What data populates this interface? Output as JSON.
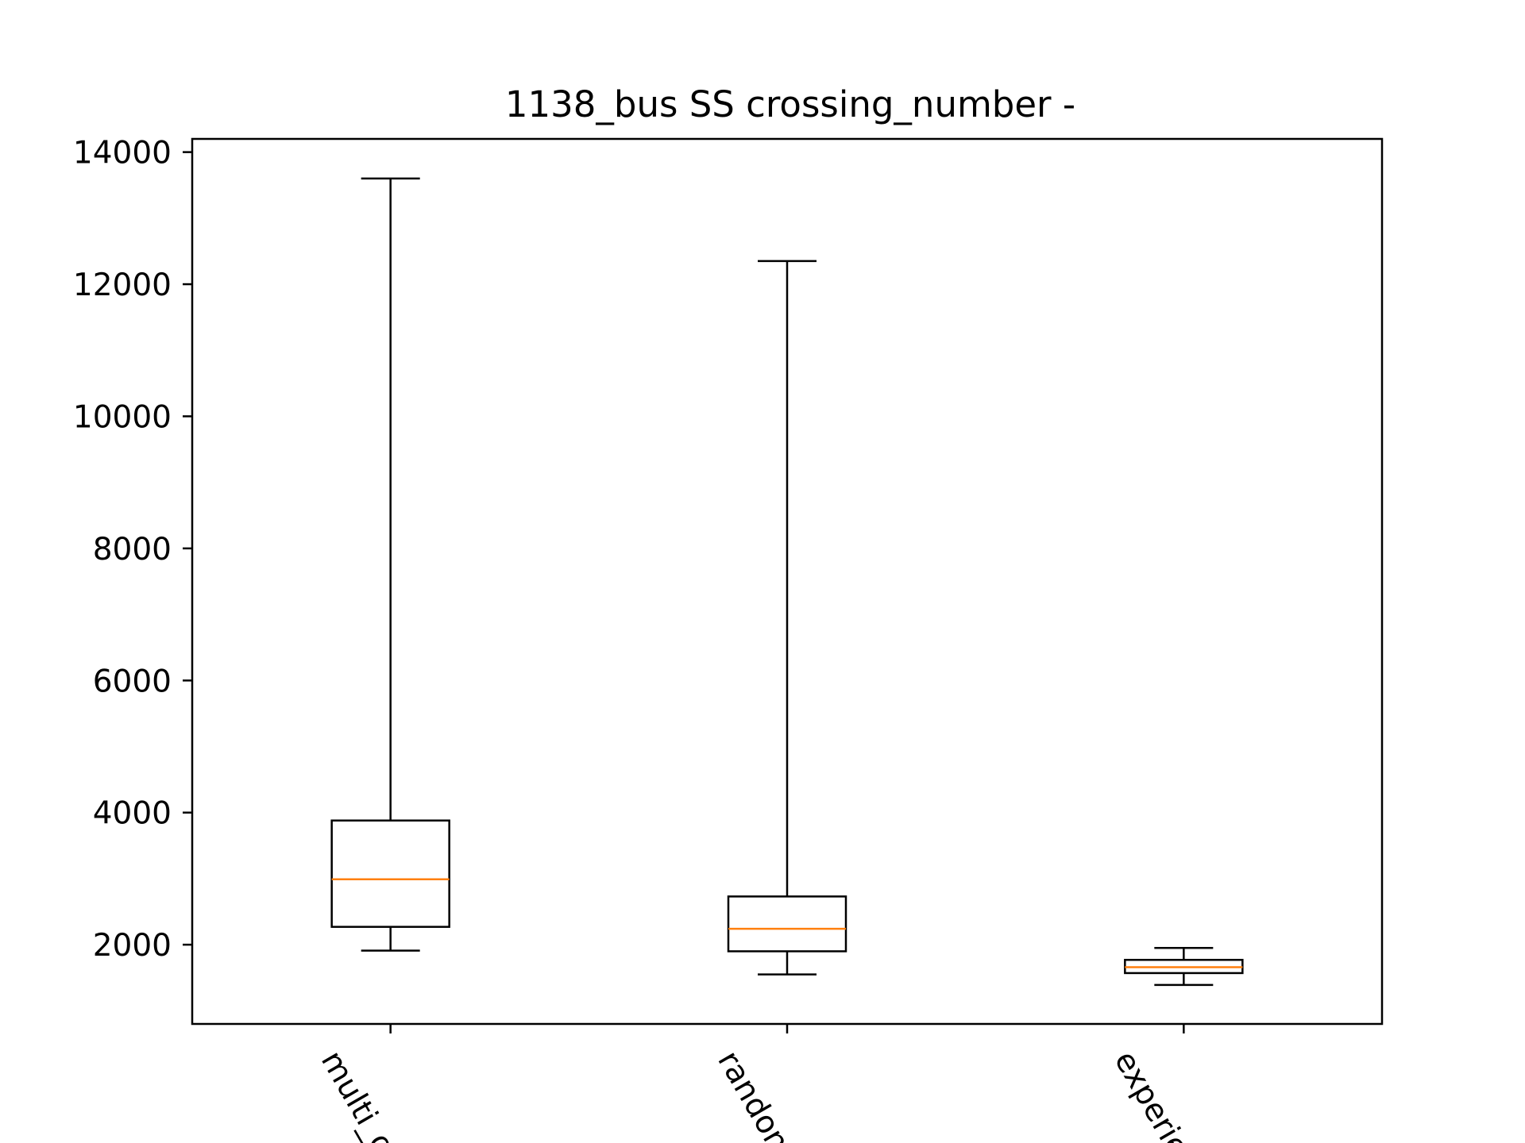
{
  "chart_data": {
    "type": "box",
    "title": "1138_bus SS crossing_number -",
    "xlabel": "",
    "ylabel": "",
    "ylim": [
      800,
      14200
    ],
    "yticks": [
      2000,
      4000,
      6000,
      8000,
      10000,
      12000,
      14000
    ],
    "ytick_labels": [
      "2000",
      "4000",
      "6000",
      "8000",
      "10000",
      "12000",
      "14000"
    ],
    "categories": [
      "multi_o",
      "randon",
      "experie"
    ],
    "boxes": [
      {
        "category": "multi_o",
        "whisker_low": 1910,
        "q1": 2270,
        "median": 2990,
        "q3": 3880,
        "whisker_high": 13600
      },
      {
        "category": "randon",
        "whisker_low": 1550,
        "q1": 1900,
        "median": 2240,
        "q3": 2730,
        "whisker_high": 12350
      },
      {
        "category": "experie",
        "whisker_low": 1390,
        "q1": 1570,
        "median": 1660,
        "q3": 1770,
        "whisker_high": 1950
      }
    ],
    "grid": false,
    "colors": {
      "box": "#000000",
      "median": "#ff7f0e"
    }
  }
}
